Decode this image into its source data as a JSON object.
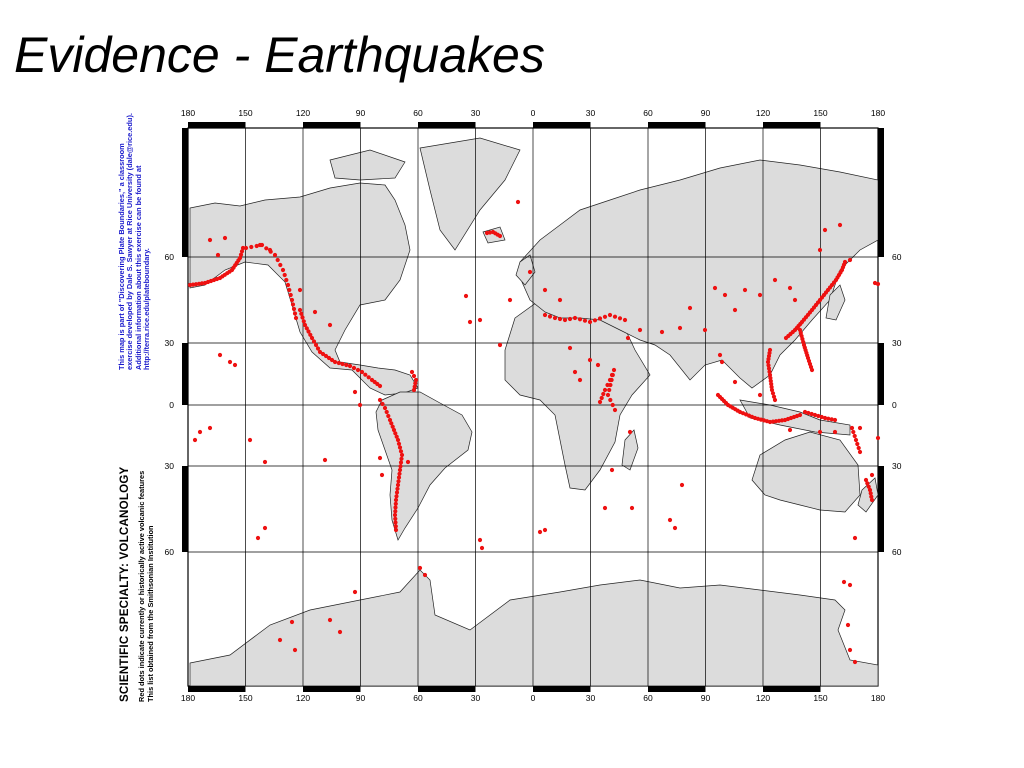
{
  "slide": {
    "title": "Evidence - Earthquakes"
  },
  "map": {
    "longitude_labels": [
      "180",
      "150",
      "120",
      "90",
      "60",
      "30",
      "0",
      "30",
      "60",
      "90",
      "120",
      "150",
      "180"
    ],
    "latitude_labels": [
      "60",
      "30",
      "0",
      "30",
      "60"
    ],
    "marker_color": "#ee1111",
    "land_color": "#dcdcdc"
  },
  "side_note": {
    "lines": [
      "This map is part of \"Discovering Plate Boundaries,\" a classroom",
      "exercise developed by Dale S. Sawyer at Rice University (dale@rice.edu).",
      "Additional information about this exercise can be found at",
      "http://terra.rice.edu/plateboundary."
    ]
  },
  "legend": {
    "heading": "SCIENTIFIC SPECIALTY: VOLCANOLOGY",
    "lines": [
      "Red dots indicate currently or historically active volcanic features",
      "This list obtained from the Smithsonian Institution"
    ]
  }
}
